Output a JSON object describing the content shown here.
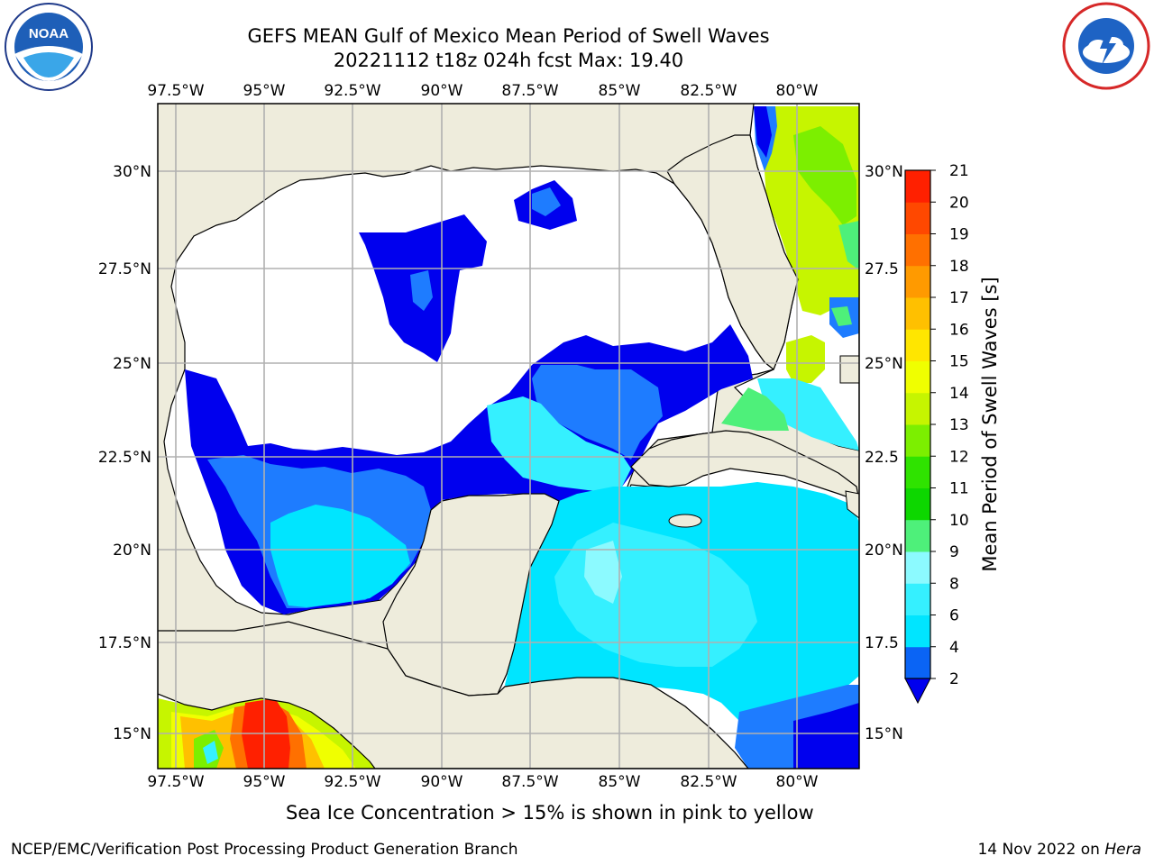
{
  "header": {
    "title_line1": "GEFS MEAN Gulf of Mexico Mean Period of Swell Waves",
    "title_line2": "20221112 t18z 024h fcst   Max: 19.40"
  },
  "logos": {
    "left": {
      "icon": "noaa-logo",
      "text": "NOAA"
    },
    "right": {
      "icon": "national-weather-service-logo"
    }
  },
  "map": {
    "lon_labels": [
      "97.5°W",
      "95°W",
      "92.5°W",
      "90°W",
      "87.5°W",
      "85°W",
      "82.5°W",
      "80°W"
    ],
    "lat_labels_left": [
      "30°N",
      "27.5°N",
      "25°N",
      "22.5°N",
      "20°N",
      "17.5°N",
      "15°N"
    ],
    "lat_labels_right": [
      "30°N",
      "27.5",
      "25°N",
      "22.5",
      "20°N",
      "17.5",
      "15°N"
    ],
    "land_color": "#eeecdc",
    "no_data_color": "#ffffff",
    "grid_color": "#b0b0b0"
  },
  "colorbar": {
    "label": "Mean Period of Swell Waves [s]",
    "ticks": [
      "21",
      "20",
      "19",
      "18",
      "17",
      "16",
      "15",
      "14",
      "13",
      "12",
      "11",
      "10",
      "9",
      "8",
      "6",
      "4",
      "2"
    ],
    "colors_bottom_to_top": [
      "#0a64f5",
      "#00e5ff",
      "#35f0ff",
      "#8cfaff",
      "#4ef07a",
      "#0dd700",
      "#2fe300",
      "#7cef00",
      "#c6f500",
      "#f0ff00",
      "#ffe600",
      "#ffc000",
      "#ff9a00",
      "#ff7000",
      "#ff4800",
      "#ff2000",
      "#ff0000"
    ],
    "extend_color": "#0000ee"
  },
  "footer": {
    "note": "Sea Ice Concentration > 15% is shown in pink to yellow",
    "left": "NCEP/EMC/Verification Post Processing Product Generation Branch",
    "right_prefix": "14 Nov 2022 on ",
    "right_emph": "Hera"
  }
}
